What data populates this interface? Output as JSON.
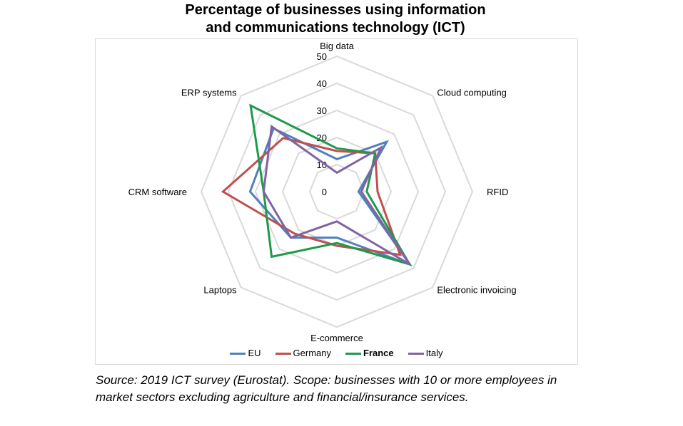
{
  "chart_data": {
    "type": "radar",
    "title_lines": [
      "Percentage of businesses using information",
      "and communications technology (ICT)"
    ],
    "categories": [
      "Big data",
      "Cloud computing",
      "RFID",
      "Electronic invoicing",
      "E-commerce",
      "Laptops",
      "CRM software",
      "ERP systems"
    ],
    "rlim": [
      0,
      50
    ],
    "ticks": [
      "0",
      "10",
      "20",
      "30",
      "40",
      "50"
    ],
    "tick_values": [
      0,
      10,
      20,
      30,
      40,
      50
    ],
    "grid": true,
    "legend_position": "bottom",
    "series": [
      {
        "name": "EU",
        "color": "#4f81bd",
        "values": [
          12,
          26,
          8,
          38,
          17,
          24,
          32,
          33
        ]
      },
      {
        "name": "Germany",
        "color": "#c0504d",
        "values": [
          15,
          20,
          15,
          33,
          20,
          22,
          42,
          28
        ]
      },
      {
        "name": "France",
        "color": "#1e9a4a",
        "values": [
          16,
          20,
          11,
          38,
          19,
          34,
          27,
          45
        ]
      },
      {
        "name": "Italy",
        "color": "#8064a2",
        "values": [
          7,
          23,
          9,
          38,
          11,
          24,
          27,
          34
        ]
      }
    ],
    "legend_bold_series": "France"
  },
  "source_note": "Source: 2019 ICT survey (Eurostat). Scope: businesses with 10 or more employees in market sectors excluding agriculture and financial/insurance services.",
  "colors": {
    "grid": "#d9d9d9",
    "frame": "#d9d9d9"
  }
}
